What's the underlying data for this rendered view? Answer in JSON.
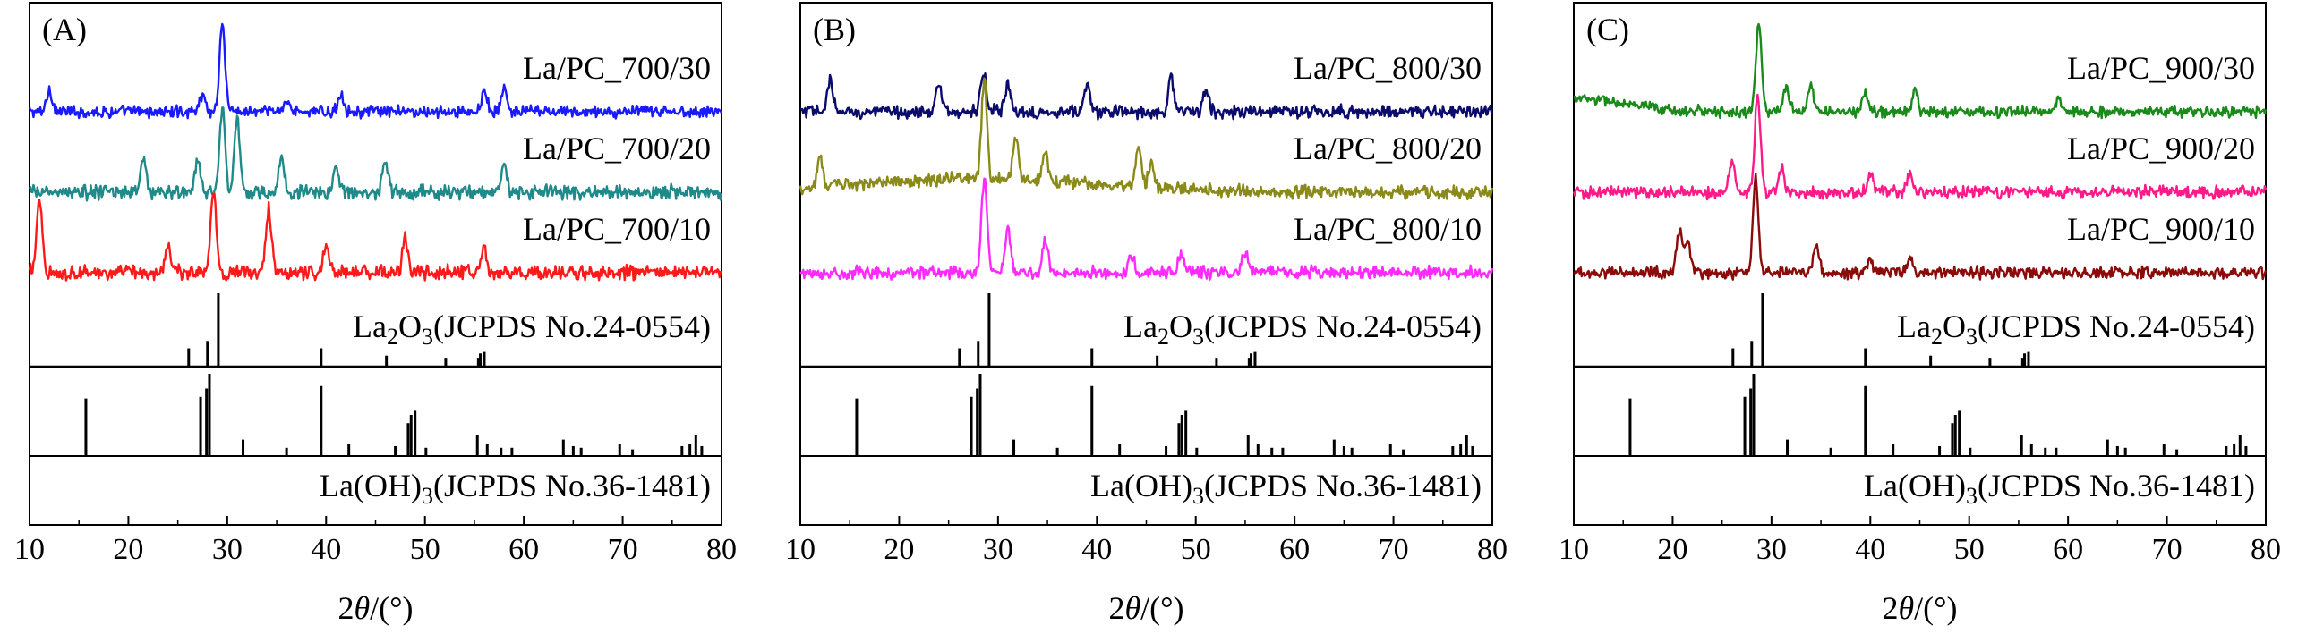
{
  "chart_data": [
    {
      "type": "line",
      "panel_label": "(A)",
      "xlabel_prefix": "2",
      "xlabel_var": "θ",
      "xlabel_unit": "/(°)",
      "xlim": [
        10,
        80
      ],
      "x_ticks": [
        "10",
        "20",
        "30",
        "40",
        "50",
        "60",
        "70",
        "80"
      ],
      "series": [
        {
          "name": "La/PC_700/30",
          "color": "#1a1aff",
          "peaks": [
            [
              29.5,
              1.0
            ],
            [
              12.0,
              0.25
            ],
            [
              27.5,
              0.2
            ],
            [
              36.0,
              0.15
            ],
            [
              41.5,
              0.2
            ],
            [
              56.0,
              0.25
            ],
            [
              58.0,
              0.25
            ]
          ],
          "noise": 0.45
        },
        {
          "name": "La/PC_700/20",
          "color": "#1f8a8a",
          "peaks": [
            [
              29.5,
              0.85
            ],
            [
              31.0,
              0.75
            ],
            [
              21.5,
              0.35
            ],
            [
              27.0,
              0.3
            ],
            [
              35.5,
              0.35
            ],
            [
              41.0,
              0.25
            ],
            [
              46.0,
              0.3
            ],
            [
              58.0,
              0.25
            ]
          ],
          "noise": 0.55
        },
        {
          "name": "La/PC_700/10",
          "color": "#ff1a1a",
          "peaks": [
            [
              11.0,
              0.8
            ],
            [
              28.6,
              0.9
            ],
            [
              34.2,
              0.7
            ],
            [
              24.0,
              0.3
            ],
            [
              40.0,
              0.3
            ],
            [
              48.0,
              0.35
            ],
            [
              56.0,
              0.25
            ]
          ],
          "noise": 0.6
        }
      ],
      "reference": [
        {
          "name_prefix": "La",
          "name_sub": "2",
          "name_mid": "O",
          "name_sub2": "3",
          "name_suffix": "(JCPDS No.24-0554)",
          "lines": [
            [
              26.1,
              0.25
            ],
            [
              28.0,
              0.35
            ],
            [
              29.1,
              1.0
            ],
            [
              39.5,
              0.25
            ],
            [
              46.1,
              0.15
            ],
            [
              52.1,
              0.12
            ],
            [
              55.4,
              0.12
            ],
            [
              55.6,
              0.18
            ],
            [
              56.0,
              0.2
            ]
          ]
        },
        {
          "name_prefix": "La(OH)",
          "name_sub": "3",
          "name_mid": "",
          "name_sub2": "",
          "name_suffix": "(JCPDS No.36-1481)",
          "lines": [
            [
              15.7,
              0.7
            ],
            [
              27.3,
              0.72
            ],
            [
              27.9,
              0.82
            ],
            [
              28.2,
              1.0
            ],
            [
              31.6,
              0.2
            ],
            [
              36.0,
              0.1
            ],
            [
              39.5,
              0.85
            ],
            [
              42.3,
              0.15
            ],
            [
              47.0,
              0.12
            ],
            [
              48.3,
              0.4
            ],
            [
              48.6,
              0.5
            ],
            [
              49.0,
              0.55
            ],
            [
              50.1,
              0.1
            ],
            [
              55.3,
              0.25
            ],
            [
              56.3,
              0.15
            ],
            [
              57.7,
              0.1
            ],
            [
              58.8,
              0.1
            ],
            [
              64.0,
              0.2
            ],
            [
              65.0,
              0.12
            ],
            [
              65.8,
              0.1
            ],
            [
              69.7,
              0.15
            ],
            [
              71.0,
              0.08
            ],
            [
              76.0,
              0.12
            ],
            [
              76.8,
              0.15
            ],
            [
              77.4,
              0.25
            ],
            [
              78.0,
              0.12
            ]
          ]
        }
      ]
    },
    {
      "type": "line",
      "panel_label": "(B)",
      "xlabel_prefix": "2",
      "xlabel_var": "θ",
      "xlabel_unit": "/(°)",
      "xlim": [
        10,
        80
      ],
      "x_ticks": [
        "10",
        "20",
        "30",
        "40",
        "50",
        "60",
        "70",
        "80"
      ],
      "series": [
        {
          "name": "La/PC_800/30",
          "color": "#0b0b6e",
          "peaks": [
            [
              28.5,
              0.45
            ],
            [
              13.0,
              0.35
            ],
            [
              24.0,
              0.3
            ],
            [
              31.0,
              0.3
            ],
            [
              39.0,
              0.3
            ],
            [
              47.5,
              0.4
            ],
            [
              51.0,
              0.25
            ]
          ],
          "noise": 0.55
        },
        {
          "name": "La/PC_800/20",
          "color": "#8a8a1a",
          "peaks": [
            [
              28.6,
              1.0
            ],
            [
              12.0,
              0.3
            ],
            [
              31.8,
              0.4
            ],
            [
              34.8,
              0.3
            ],
            [
              44.2,
              0.4
            ],
            [
              45.5,
              0.25
            ]
          ],
          "noise": 0.45,
          "hump": [
            28,
            12,
            0.55
          ]
        },
        {
          "name": "La/PC_800/10",
          "color": "#ff2aff",
          "peaks": [
            [
              28.6,
              1.0
            ],
            [
              31.0,
              0.45
            ],
            [
              34.8,
              0.35
            ],
            [
              43.5,
              0.2
            ],
            [
              48.5,
              0.2
            ],
            [
              55.0,
              0.2
            ]
          ],
          "noise": 0.45
        }
      ],
      "reference": [
        {
          "name_prefix": "La",
          "name_sub": "2",
          "name_mid": "O",
          "name_sub2": "3",
          "name_suffix": "(JCPDS No.24-0554)",
          "lines": [
            [
              26.1,
              0.25
            ],
            [
              28.0,
              0.35
            ],
            [
              29.1,
              1.0
            ],
            [
              39.5,
              0.25
            ],
            [
              46.1,
              0.15
            ],
            [
              52.1,
              0.12
            ],
            [
              55.4,
              0.12
            ],
            [
              55.6,
              0.18
            ],
            [
              56.0,
              0.2
            ]
          ]
        },
        {
          "name_prefix": "La(OH)",
          "name_sub": "3",
          "name_mid": "",
          "name_sub2": "",
          "name_suffix": "(JCPDS No.36-1481)",
          "lines": [
            [
              15.7,
              0.7
            ],
            [
              27.3,
              0.72
            ],
            [
              27.9,
              0.82
            ],
            [
              28.2,
              1.0
            ],
            [
              31.6,
              0.2
            ],
            [
              36.0,
              0.1
            ],
            [
              39.5,
              0.85
            ],
            [
              42.3,
              0.15
            ],
            [
              47.0,
              0.12
            ],
            [
              48.3,
              0.4
            ],
            [
              48.6,
              0.5
            ],
            [
              49.0,
              0.55
            ],
            [
              50.1,
              0.1
            ],
            [
              55.3,
              0.25
            ],
            [
              56.3,
              0.15
            ],
            [
              57.7,
              0.1
            ],
            [
              58.8,
              0.1
            ],
            [
              64.0,
              0.2
            ],
            [
              65.0,
              0.12
            ],
            [
              65.8,
              0.1
            ],
            [
              69.7,
              0.15
            ],
            [
              71.0,
              0.08
            ],
            [
              76.0,
              0.12
            ],
            [
              76.8,
              0.15
            ],
            [
              77.4,
              0.25
            ],
            [
              78.0,
              0.12
            ]
          ]
        }
      ]
    },
    {
      "type": "line",
      "panel_label": "(C)",
      "xlabel_prefix": "2",
      "xlabel_var": "θ",
      "xlabel_unit": "/(°)",
      "xlim": [
        10,
        80
      ],
      "x_ticks": [
        "10",
        "20",
        "30",
        "40",
        "50",
        "60",
        "70",
        "80"
      ],
      "series": [
        {
          "name": "La/PC_900/30",
          "color": "#1a8a1a",
          "peaks": [
            [
              28.7,
              1.0
            ],
            [
              31.5,
              0.3
            ],
            [
              34.0,
              0.3
            ],
            [
              39.5,
              0.2
            ],
            [
              44.5,
              0.25
            ],
            [
              59.0,
              0.15
            ]
          ],
          "noise": 0.4,
          "hump": [
            10,
            5,
            0.6
          ]
        },
        {
          "name": "La/PC_900/20",
          "color": "#ff1a8a",
          "peaks": [
            [
              28.6,
              1.0
            ],
            [
              26.0,
              0.3
            ],
            [
              31.0,
              0.25
            ],
            [
              40.0,
              0.2
            ],
            [
              44.0,
              0.2
            ]
          ],
          "noise": 0.4
        },
        {
          "name": "La/PC_900/10",
          "color": "#8b0a0a",
          "peaks": [
            [
              28.4,
              1.0
            ],
            [
              20.7,
              0.45
            ],
            [
              21.5,
              0.35
            ],
            [
              34.5,
              0.3
            ],
            [
              40.0,
              0.15
            ],
            [
              44.0,
              0.15
            ]
          ],
          "noise": 0.4
        }
      ],
      "reference": [
        {
          "name_prefix": "La",
          "name_sub": "2",
          "name_mid": "O",
          "name_sub2": "3",
          "name_suffix": "(JCPDS No.24-0554)",
          "lines": [
            [
              26.1,
              0.25
            ],
            [
              28.0,
              0.35
            ],
            [
              29.1,
              1.0
            ],
            [
              39.5,
              0.25
            ],
            [
              46.1,
              0.15
            ],
            [
              52.1,
              0.12
            ],
            [
              55.4,
              0.12
            ],
            [
              55.6,
              0.18
            ],
            [
              56.0,
              0.2
            ]
          ]
        },
        {
          "name_prefix": "La(OH)",
          "name_sub": "3",
          "name_mid": "",
          "name_sub2": "",
          "name_suffix": "(JCPDS No.36-1481)",
          "lines": [
            [
              15.7,
              0.7
            ],
            [
              27.3,
              0.72
            ],
            [
              27.9,
              0.82
            ],
            [
              28.2,
              1.0
            ],
            [
              31.6,
              0.2
            ],
            [
              36.0,
              0.1
            ],
            [
              39.5,
              0.85
            ],
            [
              42.3,
              0.15
            ],
            [
              47.0,
              0.12
            ],
            [
              48.3,
              0.4
            ],
            [
              48.6,
              0.5
            ],
            [
              49.0,
              0.55
            ],
            [
              50.1,
              0.1
            ],
            [
              55.3,
              0.25
            ],
            [
              56.3,
              0.15
            ],
            [
              57.7,
              0.1
            ],
            [
              58.8,
              0.1
            ],
            [
              64.0,
              0.2
            ],
            [
              65.0,
              0.12
            ],
            [
              65.8,
              0.1
            ],
            [
              69.7,
              0.15
            ],
            [
              71.0,
              0.08
            ],
            [
              76.0,
              0.12
            ],
            [
              76.8,
              0.15
            ],
            [
              77.4,
              0.25
            ],
            [
              78.0,
              0.12
            ]
          ]
        }
      ]
    }
  ]
}
